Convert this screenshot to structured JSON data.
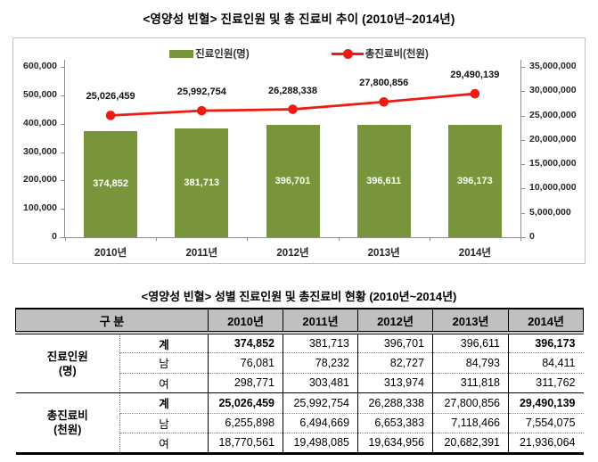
{
  "page": {
    "chart_title": "<영양성 빈혈> 진료인원 및 총 진료비 추이 (2010년~2014년)",
    "table_title": "<영양성 빈혈> 성별 진료인원 및 총진료비 현황 (2010년~2014년)"
  },
  "chart_data": {
    "type": "bar",
    "title": "<영양성 빈혈> 진료인원 및 총 진료비 추이 (2010년~2014년)",
    "categories": [
      "2010년",
      "2011년",
      "2012년",
      "2013년",
      "2014년"
    ],
    "series": [
      {
        "name": "진료인원(명)",
        "type": "bar",
        "axis": "left",
        "color": "#79953c",
        "values": [
          374852,
          381713,
          396701,
          396611,
          396173
        ]
      },
      {
        "name": "총진료비(천원)",
        "type": "line",
        "axis": "right",
        "color": "#ed1c13",
        "values": [
          25026459,
          25992754,
          26288338,
          27800856,
          29490139
        ]
      }
    ],
    "left_axis": {
      "min": 0,
      "max": 600000,
      "step": 100000
    },
    "right_axis": {
      "min": 0,
      "max": 35000000,
      "step": 5000000
    },
    "legend_position": "top",
    "grid": false
  },
  "table": {
    "col_header_label": "구 분",
    "years": [
      "2010년",
      "2011년",
      "2012년",
      "2013년",
      "2014년"
    ],
    "groups": [
      {
        "label": "진료인원\n(명)",
        "rows": [
          {
            "sub": "계",
            "bold_sub": true,
            "values": [
              "374,852",
              "381,713",
              "396,701",
              "396,611",
              "396,173"
            ],
            "bold_cols": [
              0,
              4
            ]
          },
          {
            "sub": "남",
            "values": [
              "76,081",
              "78,232",
              "82,727",
              "84,793",
              "84,411"
            ]
          },
          {
            "sub": "여",
            "values": [
              "298,771",
              "303,481",
              "313,974",
              "311,818",
              "311,762"
            ]
          }
        ]
      },
      {
        "label": "총진료비\n(천원)",
        "rows": [
          {
            "sub": "계",
            "bold_sub": true,
            "values": [
              "25,026,459",
              "25,992,754",
              "26,288,338",
              "27,800,856",
              "29,490,139"
            ],
            "bold_cols": [
              0,
              4
            ]
          },
          {
            "sub": "남",
            "values": [
              "6,255,898",
              "6,494,669",
              "6,653,383",
              "7,118,466",
              "7,554,075"
            ]
          },
          {
            "sub": "여",
            "values": [
              "18,770,561",
              "19,498,085",
              "19,634,956",
              "20,682,391",
              "21,936,064"
            ]
          }
        ]
      }
    ]
  }
}
